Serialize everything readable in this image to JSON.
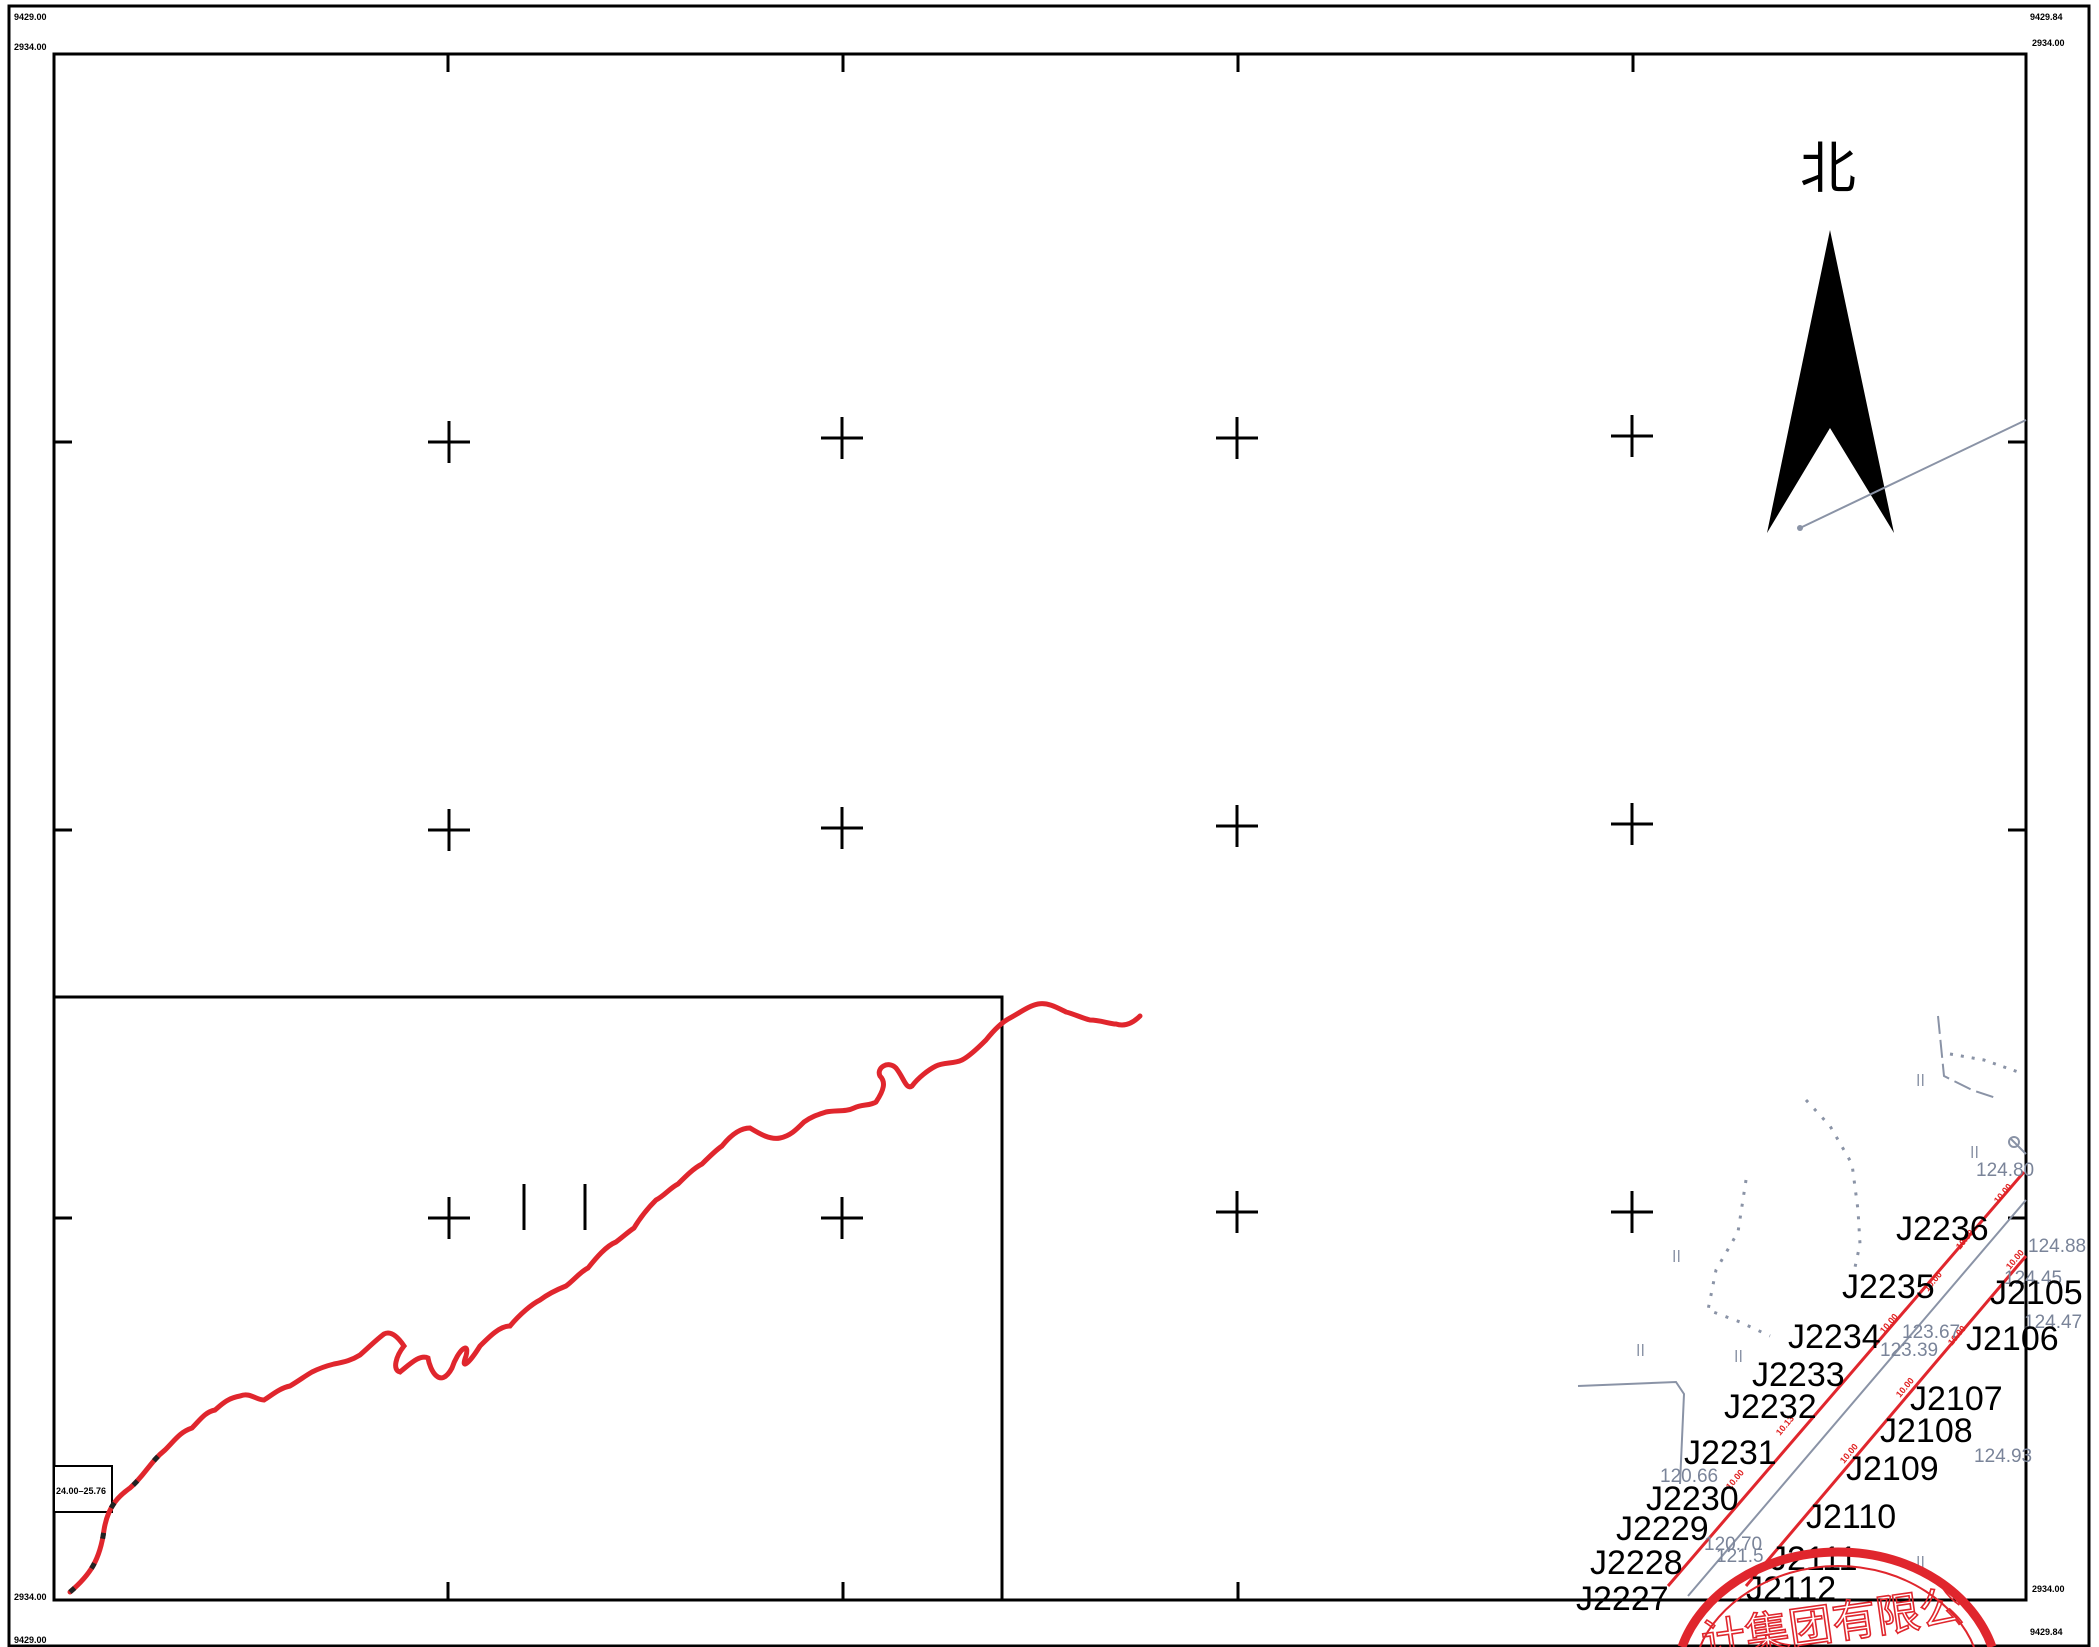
{
  "map": {
    "north_label": "北",
    "corner_labels": {
      "top_left_x": "9429.00",
      "top_left_y": "2934.00",
      "top_right_x": "9429.84",
      "top_right_y": "2934.00",
      "bottom_left_y": "2934.00",
      "bottom_left_x": "9429.00",
      "bottom_right_y": "2934.00",
      "bottom_right_x": "9429.84"
    },
    "inset_box_label": "24.00–25.76",
    "point_ids": {
      "J2236": "J2236",
      "J2235": "J2235",
      "J2234": "J2234",
      "J2233": "J2233",
      "J2232": "J2232",
      "J2231": "J2231",
      "J2230": "J2230",
      "J2229": "J2229",
      "J2228": "J2228",
      "J2227": "J2227",
      "J2105": "J2105",
      "J2106": "J2106",
      "J2107": "J2107",
      "J2108": "J2108",
      "J2109": "J2109",
      "J2110": "J2110",
      "J2111": "J2111",
      "J2112": "J2112"
    },
    "elevations": {
      "e1": "124.80",
      "e2": "124.88",
      "e3": "124.45",
      "e4": "124.47",
      "e5": "123.67",
      "e6": "123.39",
      "e7": "124.93",
      "e8": "120.66",
      "e9": "120.70",
      "e10": "121.5"
    },
    "red_line_labels": [
      "10.00",
      "10.00",
      "10.00",
      "10.00",
      "10.13",
      "10.00",
      "10.00",
      "10.00",
      "10.00",
      "10.00"
    ],
    "stamp_text": "计集团有限公",
    "colors": {
      "frame": "#000000",
      "route_red": "#e0262d",
      "gray_feature": "#8a93a6",
      "stamp": "#e0262d"
    }
  }
}
